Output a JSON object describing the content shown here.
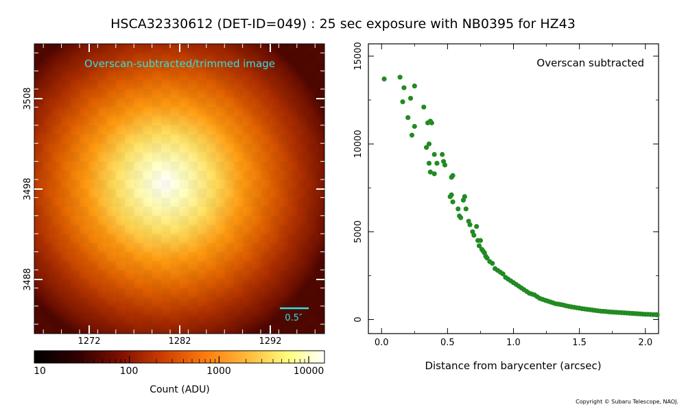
{
  "title": "HSCA32330612 (DET-ID=049) :  25 sec exposure with NB0395 for HZ43",
  "copyright": "Copyright © Subaru Telescope, NAOJ.",
  "image_panel": {
    "label": "Overscan-subtracted/trimmed image",
    "scale_bar_label": "0.5″",
    "x_ticks": [
      "1272",
      "1282",
      "1292"
    ],
    "y_ticks": [
      "3488",
      "3498",
      "3508"
    ],
    "label_color": "#33e0e0"
  },
  "colorbar": {
    "tick_labels": [
      "10",
      "100",
      "1000",
      "10000"
    ],
    "label": "Count (ADU)"
  },
  "chart_data": {
    "type": "scatter",
    "title": "Overscan subtracted",
    "xlabel": "Distance from barycenter (arcsec)",
    "ylabel": "",
    "xlim": [
      -0.1,
      2.1
    ],
    "ylim": [
      -800,
      15700
    ],
    "x_ticks": [
      "0.0",
      "0.5",
      "1.0",
      "1.5",
      "2.0"
    ],
    "y_ticks": [
      "0",
      "5000",
      "10000",
      "15000"
    ],
    "color": "#228b22",
    "x": [
      0.02,
      0.14,
      0.17,
      0.16,
      0.2,
      0.22,
      0.23,
      0.25,
      0.25,
      0.32,
      0.34,
      0.35,
      0.37,
      0.36,
      0.38,
      0.36,
      0.37,
      0.4,
      0.4,
      0.42,
      0.46,
      0.47,
      0.48,
      0.53,
      0.54,
      0.53,
      0.52,
      0.54,
      0.58,
      0.59,
      0.6,
      0.63,
      0.62,
      0.64,
      0.66,
      0.67,
      0.69,
      0.7,
      0.72,
      0.73,
      0.74,
      0.75,
      0.76,
      0.77,
      0.78,
      0.79,
      0.8,
      0.82,
      0.84,
      0.86,
      0.88,
      0.9,
      0.92,
      0.94,
      0.96,
      0.98,
      1.0,
      1.02,
      1.04,
      1.06,
      1.08,
      1.1,
      1.12,
      1.14,
      1.16,
      1.18,
      1.2,
      1.22,
      1.24,
      1.26,
      1.28,
      1.3,
      1.32,
      1.34,
      1.36,
      1.38,
      1.4,
      1.42,
      1.44,
      1.46,
      1.48,
      1.5,
      1.52,
      1.54,
      1.56,
      1.58,
      1.6,
      1.62,
      1.64,
      1.66,
      1.68,
      1.7,
      1.72,
      1.74,
      1.76,
      1.78,
      1.8,
      1.82,
      1.84,
      1.86,
      1.88,
      1.9,
      1.92,
      1.94,
      1.96,
      1.98,
      2.0,
      2.02,
      2.04,
      2.06,
      2.08,
      2.1
    ],
    "y": [
      13700,
      13800,
      13200,
      12400,
      11500,
      12600,
      10500,
      11000,
      13300,
      12100,
      9800,
      11200,
      11300,
      10000,
      11200,
      8900,
      8400,
      8300,
      9400,
      8900,
      9400,
      9000,
      8800,
      7100,
      8200,
      8100,
      7000,
      6700,
      6300,
      5900,
      5800,
      7000,
      6800,
      6300,
      5600,
      5400,
      5000,
      4800,
      5300,
      4500,
      4200,
      4500,
      4000,
      3900,
      3800,
      3600,
      3500,
      3300,
      3200,
      2900,
      2800,
      2700,
      2600,
      2400,
      2300,
      2200,
      2100,
      2000,
      1900,
      1800,
      1700,
      1600,
      1500,
      1450,
      1400,
      1300,
      1200,
      1150,
      1100,
      1050,
      1000,
      950,
      900,
      880,
      850,
      820,
      780,
      750,
      720,
      700,
      670,
      650,
      620,
      600,
      580,
      560,
      540,
      520,
      500,
      480,
      470,
      460,
      440,
      430,
      420,
      410,
      400,
      390,
      380,
      370,
      360,
      350,
      340,
      330,
      320,
      310,
      300,
      300,
      290,
      280,
      280,
      270
    ]
  }
}
